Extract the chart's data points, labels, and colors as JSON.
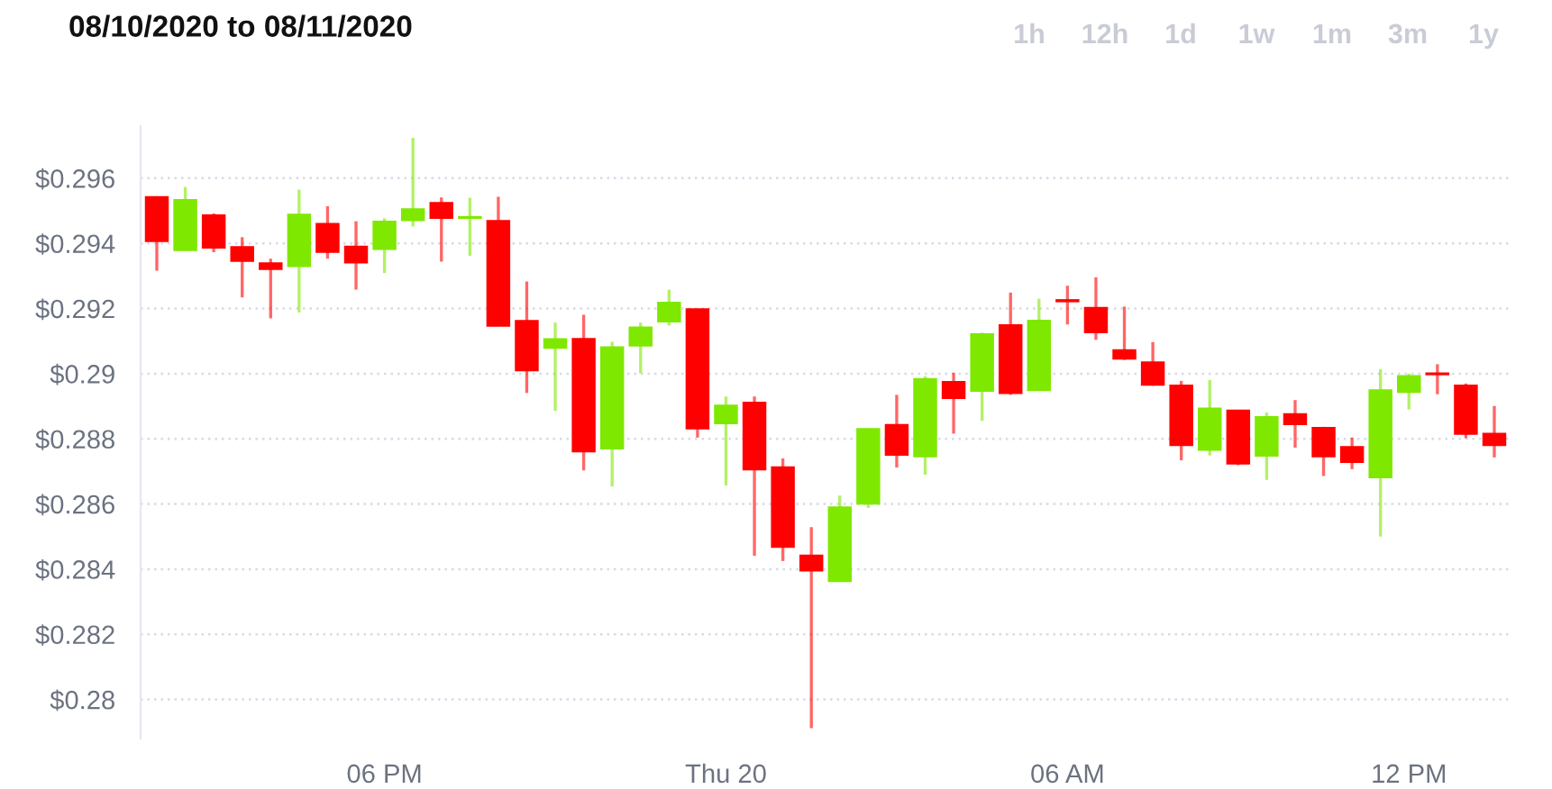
{
  "chart_data": {
    "type": "candlestick",
    "title": "08/10/2020 to 08/11/2020",
    "annotations": [
      "1h",
      "12h",
      "1d",
      "1w",
      "1m",
      "3m",
      "1y"
    ],
    "categories": [
      null,
      null,
      null,
      null,
      null,
      null,
      null,
      null,
      "06 PM",
      null,
      null,
      null,
      null,
      null,
      null,
      null,
      null,
      null,
      null,
      null,
      "Thu 20",
      null,
      null,
      null,
      null,
      null,
      null,
      null,
      null,
      null,
      null,
      null,
      "06 AM",
      null,
      null,
      null,
      null,
      null,
      null,
      null,
      null,
      null,
      null,
      null,
      "12 PM",
      null,
      null,
      null
    ],
    "ohlc": [
      [
        0.29541,
        0.29541,
        0.29316,
        0.29408
      ],
      [
        0.2938,
        0.29573,
        0.2938,
        0.29532
      ],
      [
        0.29485,
        0.29492,
        0.29373,
        0.29388
      ],
      [
        0.29388,
        0.29419,
        0.29234,
        0.29347
      ],
      [
        0.29338,
        0.29353,
        0.2917,
        0.29322
      ],
      [
        0.29331,
        0.29565,
        0.29188,
        0.29487
      ],
      [
        0.29459,
        0.29514,
        0.29353,
        0.29375
      ],
      [
        0.29389,
        0.29468,
        0.29258,
        0.29342
      ],
      [
        0.29384,
        0.29477,
        0.29309,
        0.29466
      ],
      [
        0.29472,
        0.29724,
        0.29452,
        0.29504
      ],
      [
        0.29523,
        0.29541,
        0.29344,
        0.29479
      ],
      [
        0.29479,
        0.2954,
        0.29362,
        0.2948
      ],
      [
        0.29468,
        0.29543,
        0.29148,
        0.29148
      ],
      [
        0.29161,
        0.29283,
        0.28941,
        0.29011
      ],
      [
        0.2908,
        0.29157,
        0.28886,
        0.29105
      ],
      [
        0.29106,
        0.29181,
        0.28703,
        0.28762
      ],
      [
        0.28771,
        0.29098,
        0.28654,
        0.2908
      ],
      [
        0.29087,
        0.29157,
        0.29001,
        0.29141
      ],
      [
        0.29161,
        0.29258,
        0.29148,
        0.29217
      ],
      [
        0.29197,
        0.29197,
        0.28804,
        0.28833
      ],
      [
        0.28849,
        0.2893,
        0.28657,
        0.28901
      ],
      [
        0.2891,
        0.2893,
        0.28441,
        0.28707
      ],
      [
        0.28712,
        0.2874,
        0.28425,
        0.28469
      ],
      [
        0.28441,
        0.28529,
        0.27912,
        0.28397
      ],
      [
        0.28364,
        0.28626,
        0.28364,
        0.28589
      ],
      [
        0.28602,
        0.28829,
        0.28588,
        0.28829
      ],
      [
        0.28842,
        0.28935,
        0.28712,
        0.28752
      ],
      [
        0.28747,
        0.28992,
        0.2869,
        0.28983
      ],
      [
        0.28974,
        0.29003,
        0.28816,
        0.28926
      ],
      [
        0.28948,
        0.29126,
        0.28855,
        0.2912
      ],
      [
        0.29148,
        0.29249,
        0.28935,
        0.28941
      ],
      [
        0.2895,
        0.2923,
        0.2895,
        0.29162
      ],
      [
        0.29225,
        0.2927,
        0.29151,
        0.29223
      ],
      [
        0.29201,
        0.29296,
        0.29104,
        0.29128
      ],
      [
        0.29071,
        0.29206,
        0.29042,
        0.29047
      ],
      [
        0.29034,
        0.29097,
        0.28963,
        0.28967
      ],
      [
        0.28963,
        0.28978,
        0.28734,
        0.28782
      ],
      [
        0.28767,
        0.28981,
        0.28749,
        0.28892
      ],
      [
        0.28886,
        0.28886,
        0.28719,
        0.28725
      ],
      [
        0.28749,
        0.28881,
        0.28674,
        0.28866
      ],
      [
        0.28875,
        0.28919,
        0.28773,
        0.28846
      ],
      [
        0.28833,
        0.28837,
        0.28686,
        0.28747
      ],
      [
        0.28774,
        0.28804,
        0.28707,
        0.2873
      ],
      [
        0.28683,
        0.29014,
        0.285,
        0.28948
      ],
      [
        0.28945,
        0.29,
        0.2889,
        0.28992
      ],
      [
        0.29,
        0.29029,
        0.28937,
        0.28999
      ],
      [
        0.28963,
        0.2897,
        0.28802,
        0.28816
      ],
      [
        0.28815,
        0.28901,
        0.28743,
        0.28782
      ]
    ],
    "colors": [
      "#ff0000",
      "#7fe800",
      "#ff0000",
      "#ff0000",
      "#ff0000",
      "#7fe800",
      "#ff0000",
      "#ff0000",
      "#7fe800",
      "#7fe800",
      "#ff0000",
      "#7fe800",
      "#ff0000",
      "#ff0000",
      "#7fe800",
      "#ff0000",
      "#7fe800",
      "#7fe800",
      "#7fe800",
      "#ff0000",
      "#7fe800",
      "#ff0000",
      "#ff0000",
      "#ff0000",
      "#7fe800",
      "#7fe800",
      "#ff0000",
      "#7fe800",
      "#ff0000",
      "#7fe800",
      "#ff0000",
      "#7fe800",
      "#ff0000",
      "#ff0000",
      "#ff0000",
      "#ff0000",
      "#ff0000",
      "#7fe800",
      "#ff0000",
      "#7fe800",
      "#ff0000",
      "#ff0000",
      "#ff0000",
      "#7fe800",
      "#7fe800",
      "#ff0000",
      "#ff0000",
      "#ff0000"
    ],
    "ylim": [
      0.2788,
      0.2976
    ],
    "yticks": [
      {
        "value": 0.28,
        "label": "$0.28"
      },
      {
        "value": 0.282,
        "label": "$0.282"
      },
      {
        "value": 0.284,
        "label": "$0.284"
      },
      {
        "value": 0.286,
        "label": "$0.286"
      },
      {
        "value": 0.288,
        "label": "$0.288"
      },
      {
        "value": 0.29,
        "label": "$0.29"
      },
      {
        "value": 0.292,
        "label": "$0.292"
      },
      {
        "value": 0.294,
        "label": "$0.294"
      },
      {
        "value": 0.296,
        "label": "$0.296"
      }
    ],
    "grid": "y"
  }
}
